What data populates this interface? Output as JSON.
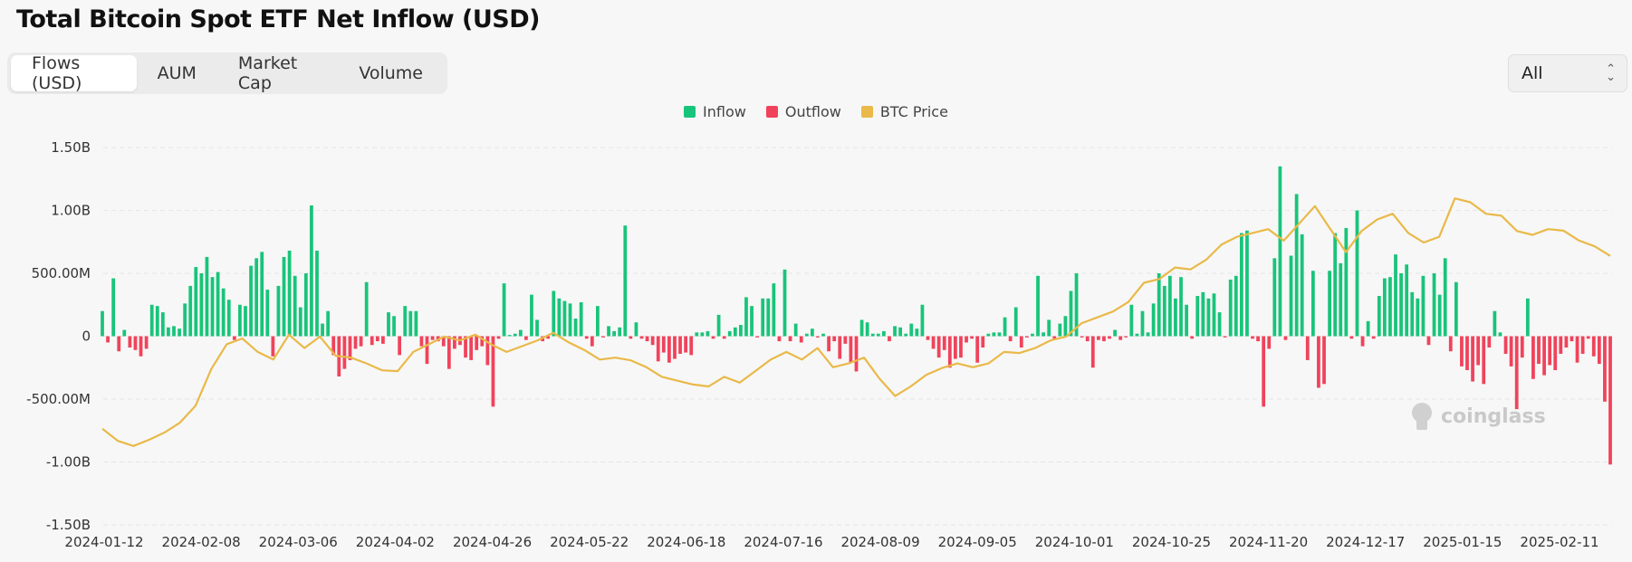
{
  "title": "Total Bitcoin Spot ETF Net Inflow (USD)",
  "tabs": [
    {
      "label": "Flows (USD)",
      "active": true
    },
    {
      "label": "AUM",
      "active": false
    },
    {
      "label": "Market Cap",
      "active": false
    },
    {
      "label": "Volume",
      "active": false
    }
  ],
  "range_select": {
    "value": "All"
  },
  "watermark": "coinglass",
  "colors": {
    "inflow": "#18c47a",
    "outflow": "#f0435b",
    "btc_price": "#e9b949",
    "grid": "#e6e6e6"
  },
  "chart_data": {
    "type": "bar",
    "legend": [
      "Inflow",
      "Outflow",
      "BTC Price"
    ],
    "legend_position": "top-center",
    "ylim": [
      -1500000000,
      1500000000
    ],
    "y_ticks": [
      {
        "value": 1500000000,
        "label": "1.50B"
      },
      {
        "value": 1000000000,
        "label": "1.00B"
      },
      {
        "value": 500000000,
        "label": "500.00M"
      },
      {
        "value": 0,
        "label": "0"
      },
      {
        "value": -500000000,
        "label": "-500.00M"
      },
      {
        "value": -1000000000,
        "label": "-1.00B"
      },
      {
        "value": -1500000000,
        "label": "-1.50B"
      }
    ],
    "x_ticks": [
      "2024-01-12",
      "2024-02-08",
      "2024-03-06",
      "2024-04-02",
      "2024-04-26",
      "2024-05-22",
      "2024-06-18",
      "2024-07-16",
      "2024-08-09",
      "2024-09-05",
      "2024-10-01",
      "2024-10-25",
      "2024-11-20",
      "2024-12-17",
      "2025-01-15",
      "2025-02-11"
    ],
    "grid": true,
    "flows_musd": [
      200,
      -50,
      460,
      -120,
      50,
      -90,
      -110,
      -160,
      -100,
      250,
      240,
      190,
      70,
      80,
      60,
      260,
      400,
      550,
      500,
      630,
      470,
      510,
      380,
      290,
      -30,
      250,
      240,
      560,
      620,
      670,
      370,
      -160,
      400,
      630,
      680,
      480,
      230,
      500,
      1040,
      680,
      100,
      200,
      -150,
      -320,
      -260,
      -190,
      -100,
      -80,
      430,
      -70,
      -40,
      -60,
      190,
      160,
      -150,
      240,
      200,
      200,
      -80,
      -220,
      -30,
      -40,
      -80,
      -260,
      -100,
      -70,
      -170,
      -190,
      -110,
      -80,
      -230,
      -560,
      -20,
      420,
      10,
      20,
      50,
      -30,
      330,
      130,
      -40,
      -20,
      360,
      300,
      280,
      260,
      140,
      270,
      -20,
      -80,
      240,
      -10,
      80,
      40,
      70,
      880,
      -20,
      110,
      -20,
      -40,
      -70,
      -200,
      -130,
      -210,
      -180,
      -140,
      -130,
      -150,
      30,
      30,
      40,
      -20,
      170,
      -20,
      40,
      70,
      90,
      310,
      240,
      -10,
      300,
      300,
      420,
      -40,
      530,
      -40,
      100,
      -50,
      20,
      60,
      -10,
      20,
      -120,
      -40,
      -180,
      -60,
      -210,
      -280,
      130,
      110,
      20,
      20,
      40,
      -40,
      80,
      70,
      20,
      100,
      60,
      250,
      -30,
      -100,
      -170,
      -110,
      -250,
      -180,
      -170,
      -50,
      -20,
      -210,
      -90,
      20,
      30,
      30,
      150,
      -40,
      230,
      -90,
      -10,
      20,
      480,
      30,
      130,
      -20,
      100,
      160,
      360,
      500,
      -10,
      -40,
      -250,
      -30,
      -40,
      -20,
      50,
      -30,
      -10,
      250,
      20,
      200,
      30,
      260,
      500,
      400,
      480,
      300,
      470,
      250,
      -20,
      320,
      350,
      300,
      340,
      190,
      -10,
      450,
      480,
      820,
      840,
      -20,
      -40,
      -560,
      -100,
      620,
      1350,
      -30,
      640,
      1130,
      810,
      -190,
      520,
      -410,
      -380,
      520,
      820,
      580,
      860,
      -20,
      1000,
      -80,
      120,
      -20,
      320,
      460,
      470,
      650,
      500,
      570,
      350,
      300,
      480,
      -70,
      500,
      330,
      620,
      -120,
      430,
      -240,
      -270,
      -360,
      -230,
      -380,
      -90,
      200,
      30,
      -140,
      -240,
      -580,
      -170,
      300,
      -340,
      -220,
      -310,
      -230,
      -270,
      -140,
      -90,
      -40,
      -210,
      -140,
      -20,
      -160,
      -220,
      -520,
      -1020
    ],
    "btc_price_usd": [
      46000,
      42800,
      41500,
      43100,
      45000,
      47600,
      52000,
      61500,
      68000,
      69500,
      66000,
      64000,
      70500,
      67000,
      70000,
      65000,
      64500,
      63000,
      61200,
      61000,
      66000,
      68000,
      70000,
      69000,
      70500,
      68000,
      66000,
      67500,
      69000,
      71000,
      68500,
      66500,
      64000,
      64500,
      63800,
      62000,
      59500,
      58500,
      57500,
      57000,
      59500,
      58000,
      61000,
      64000,
      66000,
      64000,
      67000,
      62000,
      63000,
      64500,
      59000,
      54500,
      57000,
      60000,
      61800,
      63000,
      62000,
      63000,
      66000,
      65700,
      67000,
      69000,
      70000,
      73500,
      75000,
      76500,
      79000,
      84000,
      85000,
      88000,
      87500,
      90000,
      94000,
      96000,
      97000,
      98000,
      95000,
      99500,
      104000,
      98000,
      92000,
      97500,
      100500,
      102000,
      97000,
      94500,
      96000,
      106000,
      105000,
      102000,
      101500,
      97500,
      96500,
      98000,
      97600,
      95000,
      93500,
      91000
    ]
  }
}
